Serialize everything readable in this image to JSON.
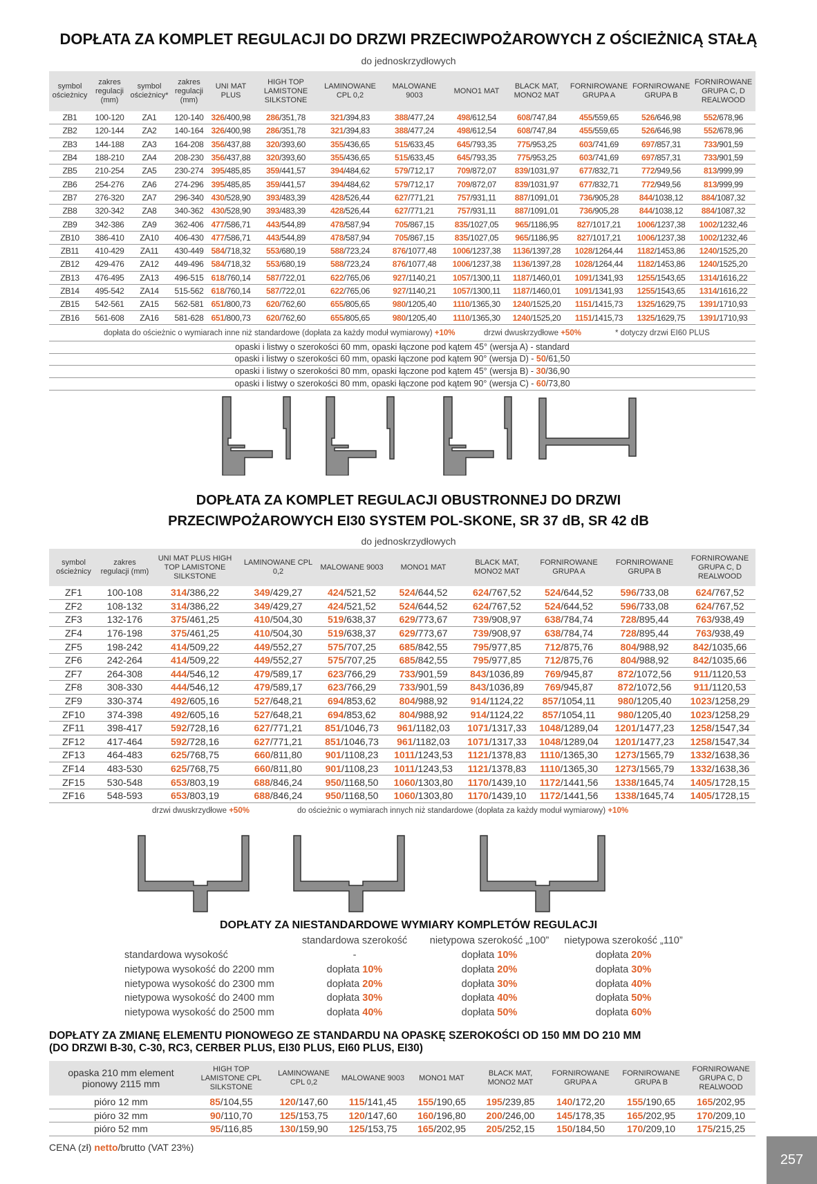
{
  "section1": {
    "title": "DOPŁATA ZA KOMPLET REGULACJI DO DRZWI PRZECIWPOŻAROWYCH Z OŚCIEŻNICĄ STAŁĄ",
    "subtitle": "do jednoskrzydłowych",
    "headers": [
      "symbol ościeżnicy",
      "zakres regulacji (mm)",
      "symbol ościeżnicy*",
      "zakres regulacji (mm)",
      "UNI MAT PLUS",
      "HIGH TOP LAMISTONE SILKSTONE",
      "LAMINOWANE CPL 0,2",
      "MALOWANE 9003",
      "MONO1 MAT",
      "BLACK MAT, MONO2 MAT",
      "FORNIROWANE GRUPA A",
      "FORNIROWANE GRUPA B",
      "FORNIROWANE GRUPA C, D REALWOOD"
    ],
    "rows": [
      [
        "ZB1",
        "100-120",
        "ZA1",
        "120-140",
        "326/400,98",
        "286/351,78",
        "321/394,83",
        "388/477,24",
        "498/612,54",
        "608/747,84",
        "455/559,65",
        "526/646,98",
        "552/678,96"
      ],
      [
        "ZB2",
        "120-144",
        "ZA2",
        "140-164",
        "326/400,98",
        "286/351,78",
        "321/394,83",
        "388/477,24",
        "498/612,54",
        "608/747,84",
        "455/559,65",
        "526/646,98",
        "552/678,96"
      ],
      [
        "ZB3",
        "144-188",
        "ZA3",
        "164-208",
        "356/437,88",
        "320/393,60",
        "355/436,65",
        "515/633,45",
        "645/793,35",
        "775/953,25",
        "603/741,69",
        "697/857,31",
        "733/901,59"
      ],
      [
        "ZB4",
        "188-210",
        "ZA4",
        "208-230",
        "356/437,88",
        "320/393,60",
        "355/436,65",
        "515/633,45",
        "645/793,35",
        "775/953,25",
        "603/741,69",
        "697/857,31",
        "733/901,59"
      ],
      [
        "ZB5",
        "210-254",
        "ZA5",
        "230-274",
        "395/485,85",
        "359/441,57",
        "394/484,62",
        "579/712,17",
        "709/872,07",
        "839/1031,97",
        "677/832,71",
        "772/949,56",
        "813/999,99"
      ],
      [
        "ZB6",
        "254-276",
        "ZA6",
        "274-296",
        "395/485,85",
        "359/441,57",
        "394/484,62",
        "579/712,17",
        "709/872,07",
        "839/1031,97",
        "677/832,71",
        "772/949,56",
        "813/999,99"
      ],
      [
        "ZB7",
        "276-320",
        "ZA7",
        "296-340",
        "430/528,90",
        "393/483,39",
        "428/526,44",
        "627/771,21",
        "757/931,11",
        "887/1091,01",
        "736/905,28",
        "844/1038,12",
        "884/1087,32"
      ],
      [
        "ZB8",
        "320-342",
        "ZA8",
        "340-362",
        "430/528,90",
        "393/483,39",
        "428/526,44",
        "627/771,21",
        "757/931,11",
        "887/1091,01",
        "736/905,28",
        "844/1038,12",
        "884/1087,32"
      ],
      [
        "ZB9",
        "342-386",
        "ZA9",
        "362-406",
        "477/586,71",
        "443/544,89",
        "478/587,94",
        "705/867,15",
        "835/1027,05",
        "965/1186,95",
        "827/1017,21",
        "1006/1237,38",
        "1002/1232,46"
      ],
      [
        "ZB10",
        "386-410",
        "ZA10",
        "406-430",
        "477/586,71",
        "443/544,89",
        "478/587,94",
        "705/867,15",
        "835/1027,05",
        "965/1186,95",
        "827/1017,21",
        "1006/1237,38",
        "1002/1232,46"
      ],
      [
        "ZB11",
        "410-429",
        "ZA11",
        "430-449",
        "584/718,32",
        "553/680,19",
        "588/723,24",
        "876/1077,48",
        "1006/1237,38",
        "1136/1397,28",
        "1028/1264,44",
        "1182/1453,86",
        "1240/1525,20"
      ],
      [
        "ZB12",
        "429-476",
        "ZA12",
        "449-496",
        "584/718,32",
        "553/680,19",
        "588/723,24",
        "876/1077,48",
        "1006/1237,38",
        "1136/1397,28",
        "1028/1264,44",
        "1182/1453,86",
        "1240/1525,20"
      ],
      [
        "ZB13",
        "476-495",
        "ZA13",
        "496-515",
        "618/760,14",
        "587/722,01",
        "622/765,06",
        "927/1140,21",
        "1057/1300,11",
        "1187/1460,01",
        "1091/1341,93",
        "1255/1543,65",
        "1314/1616,22"
      ],
      [
        "ZB14",
        "495-542",
        "ZA14",
        "515-562",
        "618/760,14",
        "587/722,01",
        "622/765,06",
        "927/1140,21",
        "1057/1300,11",
        "1187/1460,01",
        "1091/1341,93",
        "1255/1543,65",
        "1314/1616,22"
      ],
      [
        "ZB15",
        "542-561",
        "ZA15",
        "562-581",
        "651/800,73",
        "620/762,60",
        "655/805,65",
        "980/1205,40",
        "1110/1365,30",
        "1240/1525,20",
        "1151/1415,73",
        "1325/1629,75",
        "1391/1710,93"
      ],
      [
        "ZB16",
        "561-608",
        "ZA16",
        "581-628",
        "651/800,73",
        "620/762,60",
        "655/805,65",
        "980/1205,40",
        "1110/1365,30",
        "1240/1525,20",
        "1151/1415,73",
        "1325/1629,75",
        "1391/1710,93"
      ]
    ],
    "notes": [
      {
        "text": "dopłata do ościeżnic o wymiarach inne niż standardowe (dopłata za każdy moduł wymiarowy) ",
        "highlight": "+10%"
      },
      {
        "text": "drzwi dwuskrzydłowe ",
        "highlight": "+50%"
      },
      {
        "text": "* dotyczy drzwi EI60 PLUS"
      }
    ],
    "opaski": [
      {
        "text": "opaski i listwy o szerokości 60 mm, opaski łączone pod kątem 45° (wersja A) - standard"
      },
      {
        "text": "opaski i listwy o szerokości 60 mm, opaski łączone pod kątem 90° (wersja D) - ",
        "price": "50/61,50"
      },
      {
        "text": "opaski i listwy o szerokości 80 mm, opaski łączone pod kątem 45° (wersja B) - ",
        "price": "30/36,90"
      },
      {
        "text": "opaski i listwy o szerokości 80 mm, opaski łączone pod kątem 90° (wersja C) - ",
        "price": "60/73,80"
      }
    ]
  },
  "section2": {
    "title_lines": [
      "DOPŁATA ZA KOMPLET REGULACJI OBUSTRONNEJ DO DRZWI",
      "PRZECIWPOŻAROWYCH EI30 SYSTEM POL-SKONE, SR 37 dB, SR 42 dB"
    ],
    "subtitle": "do jednoskrzydłowych",
    "headers": [
      "symbol ościeżnicy",
      "zakres regulacji (mm)",
      "UNI MAT PLUS HIGH TOP LAMISTONE SILKSTONE",
      "LAMINOWANE CPL 0,2",
      "MALOWANE 9003",
      "MONO1 MAT",
      "BLACK MAT, MONO2 MAT",
      "FORNIROWANE GRUPA A",
      "FORNIROWANE GRUPA B",
      "FORNIROWANE GRUPA C, D REALWOOD"
    ],
    "rows": [
      [
        "ZF1",
        "100-108",
        "314/386,22",
        "349/429,27",
        "424/521,52",
        "524/644,52",
        "624/767,52",
        "524/644,52",
        "596/733,08",
        "624/767,52"
      ],
      [
        "ZF2",
        "108-132",
        "314/386,22",
        "349/429,27",
        "424/521,52",
        "524/644,52",
        "624/767,52",
        "524/644,52",
        "596/733,08",
        "624/767,52"
      ],
      [
        "ZF3",
        "132-176",
        "375/461,25",
        "410/504,30",
        "519/638,37",
        "629/773,67",
        "739/908,97",
        "638/784,74",
        "728/895,44",
        "763/938,49"
      ],
      [
        "ZF4",
        "176-198",
        "375/461,25",
        "410/504,30",
        "519/638,37",
        "629/773,67",
        "739/908,97",
        "638/784,74",
        "728/895,44",
        "763/938,49"
      ],
      [
        "ZF5",
        "198-242",
        "414/509,22",
        "449/552,27",
        "575/707,25",
        "685/842,55",
        "795/977,85",
        "712/875,76",
        "804/988,92",
        "842/1035,66"
      ],
      [
        "ZF6",
        "242-264",
        "414/509,22",
        "449/552,27",
        "575/707,25",
        "685/842,55",
        "795/977,85",
        "712/875,76",
        "804/988,92",
        "842/1035,66"
      ],
      [
        "ZF7",
        "264-308",
        "444/546,12",
        "479/589,17",
        "623/766,29",
        "733/901,59",
        "843/1036,89",
        "769/945,87",
        "872/1072,56",
        "911/1120,53"
      ],
      [
        "ZF8",
        "308-330",
        "444/546,12",
        "479/589,17",
        "623/766,29",
        "733/901,59",
        "843/1036,89",
        "769/945,87",
        "872/1072,56",
        "911/1120,53"
      ],
      [
        "ZF9",
        "330-374",
        "492/605,16",
        "527/648,21",
        "694/853,62",
        "804/988,92",
        "914/1124,22",
        "857/1054,11",
        "980/1205,40",
        "1023/1258,29"
      ],
      [
        "ZF10",
        "374-398",
        "492/605,16",
        "527/648,21",
        "694/853,62",
        "804/988,92",
        "914/1124,22",
        "857/1054,11",
        "980/1205,40",
        "1023/1258,29"
      ],
      [
        "ZF11",
        "398-417",
        "592/728,16",
        "627/771,21",
        "851/1046,73",
        "961/1182,03",
        "1071/1317,33",
        "1048/1289,04",
        "1201/1477,23",
        "1258/1547,34"
      ],
      [
        "ZF12",
        "417-464",
        "592/728,16",
        "627/771,21",
        "851/1046,73",
        "961/1182,03",
        "1071/1317,33",
        "1048/1289,04",
        "1201/1477,23",
        "1258/1547,34"
      ],
      [
        "ZF13",
        "464-483",
        "625/768,75",
        "660/811,80",
        "901/1108,23",
        "1011/1243,53",
        "1121/1378,83",
        "1110/1365,30",
        "1273/1565,79",
        "1332/1638,36"
      ],
      [
        "ZF14",
        "483-530",
        "625/768,75",
        "660/811,80",
        "901/1108,23",
        "1011/1243,53",
        "1121/1378,83",
        "1110/1365,30",
        "1273/1565,79",
        "1332/1638,36"
      ],
      [
        "ZF15",
        "530-548",
        "653/803,19",
        "688/846,24",
        "950/1168,50",
        "1060/1303,80",
        "1170/1439,10",
        "1172/1441,56",
        "1338/1645,74",
        "1405/1728,15"
      ],
      [
        "ZF16",
        "548-593",
        "653/803,19",
        "688/846,24",
        "950/1168,50",
        "1060/1303,80",
        "1170/1439,10",
        "1172/1441,56",
        "1338/1645,74",
        "1405/1728,15"
      ]
    ],
    "notes": [
      {
        "text": "drzwi dwuskrzydłowe ",
        "highlight": "+50%"
      },
      {
        "text": "do ościeżnic o wymiarach innych niż standardowe (dopłata za każdy moduł wymiarowy) ",
        "highlight": "+10%"
      }
    ]
  },
  "section3": {
    "title": "DOPŁATY ZA NIESTANDARDOWE WYMIARY KOMPLETÓW REGULACJI",
    "columns": [
      "standardowa szerokość",
      "nietypowa szerokość „100”",
      "nietypowa szerokość „110”"
    ],
    "rows": [
      {
        "label": "standardowa wysokość",
        "values": [
          "-",
          "dopłata 10%",
          "dopłata 20%"
        ]
      },
      {
        "label": "nietypowa wysokość do 2200 mm",
        "values": [
          "dopłata 10%",
          "dopłata 20%",
          "dopłata 30%"
        ]
      },
      {
        "label": "nietypowa wysokość do 2300 mm",
        "values": [
          "dopłata 20%",
          "dopłata 30%",
          "dopłata 40%"
        ]
      },
      {
        "label": "nietypowa wysokość do 2400 mm",
        "values": [
          "dopłata 30%",
          "dopłata 40%",
          "dopłata 50%"
        ]
      },
      {
        "label": "nietypowa wysokość do 2500 mm",
        "values": [
          "dopłata 40%",
          "dopłata 50%",
          "dopłata 60%"
        ]
      }
    ]
  },
  "section4": {
    "title_lines": [
      "DOPŁATY ZA ZMIANĘ ELEMENTU PIONOWEGO ZE STANDARDU NA OPASKĘ SZEROKOŚCI OD 150 MM DO 210 MM",
      "(DO DRZWI B-30, C-30, RC3, CERBER PLUS, EI30 PLUS, EI60 PLUS, EI30)"
    ],
    "headers": [
      "opaska 210 mm element pionowy 2115 mm",
      "HIGH TOP LAMISTONE CPL SILKSTONE",
      "LAMINOWANE CPL 0,2",
      "MALOWANE 9003",
      "MONO1 MAT",
      "BLACK MAT, MONO2 MAT",
      "FORNIROWANE GRUPA A",
      "FORNIROWANE GRUPA B",
      "FORNIROWANE GRUPA C, D REALWOOD"
    ],
    "rows": [
      [
        "pióro 12 mm",
        "85/104,55",
        "120/147,60",
        "115/141,45",
        "155/190,65",
        "195/239,85",
        "140/172,20",
        "155/190,65",
        "165/202,95"
      ],
      [
        "pióro 32 mm",
        "90/110,70",
        "125/153,75",
        "120/147,60",
        "160/196,80",
        "200/246,00",
        "145/178,35",
        "165/202,95",
        "170/209,10"
      ],
      [
        "pióro 52 mm",
        "95/116,85",
        "130/159,90",
        "125/153,75",
        "165/202,95",
        "205/252,15",
        "150/184,50",
        "170/209,10",
        "175/215,25"
      ]
    ]
  },
  "footer": {
    "prefix": "CENA (zł) ",
    "highlight": "netto",
    "suffix": "/brutto (VAT 23%)"
  },
  "page_number": "257"
}
